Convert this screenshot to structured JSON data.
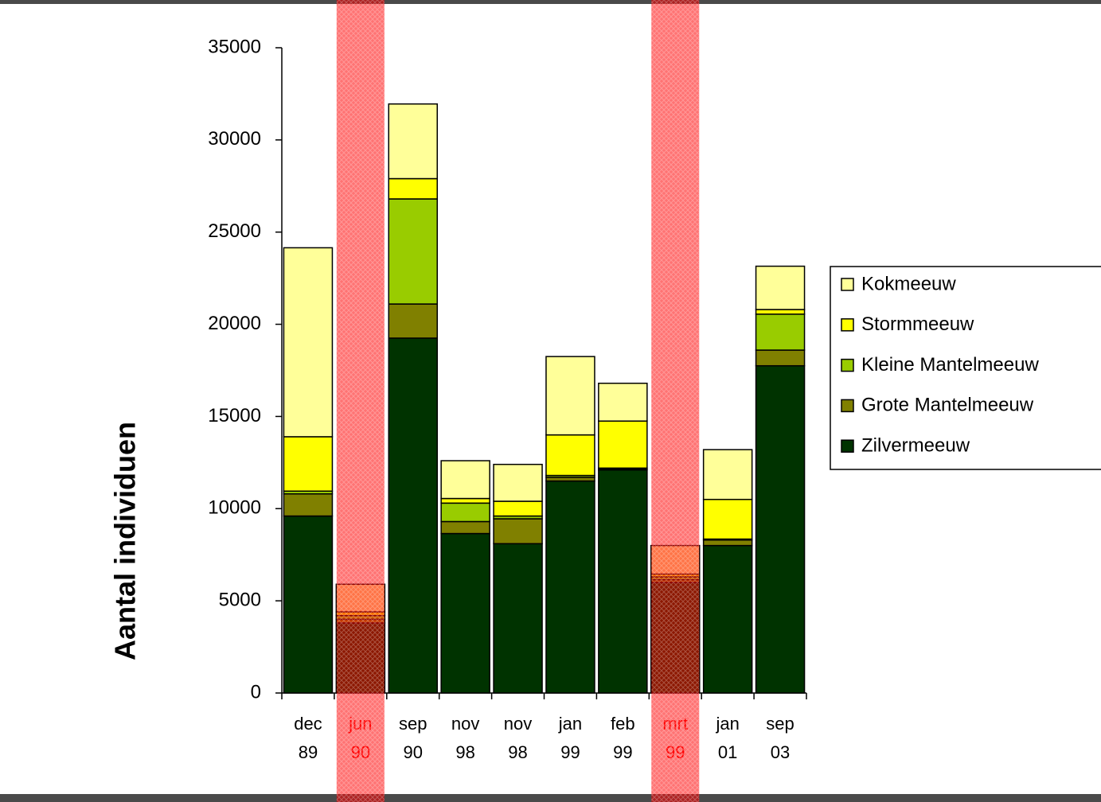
{
  "chart_data": {
    "type": "stacked-bar",
    "y_label": "Aantal individuen",
    "categories": [
      [
        "dec",
        "89"
      ],
      [
        "jun",
        "90"
      ],
      [
        "sep",
        "90"
      ],
      [
        "nov",
        "98"
      ],
      [
        "nov",
        "98"
      ],
      [
        "jan",
        "99"
      ],
      [
        "feb",
        "99"
      ],
      [
        "mrt",
        "99"
      ],
      [
        "jan",
        "01"
      ],
      [
        "sep",
        "03"
      ]
    ],
    "series": [
      {
        "name": "Zilvermeeuw",
        "color": "#003300",
        "values": [
          9600,
          3800,
          19250,
          8650,
          8100,
          11500,
          12100,
          6000,
          8000,
          17750
        ]
      },
      {
        "name": "Grote Mantelmeeuw",
        "color": "#808000",
        "values": [
          1200,
          200,
          1850,
          650,
          1350,
          200,
          50,
          150,
          300,
          850
        ]
      },
      {
        "name": "Kleine Mantelmeeuw",
        "color": "#99cc00",
        "values": [
          150,
          200,
          5700,
          1000,
          150,
          100,
          50,
          150,
          50,
          1950
        ]
      },
      {
        "name": "Stormmeeuw",
        "color": "#ffff00",
        "values": [
          2950,
          200,
          1100,
          250,
          800,
          2200,
          2550,
          150,
          2150,
          250
        ]
      },
      {
        "name": "Kokmeeuw",
        "color": "#ffff99",
        "values": [
          10250,
          1500,
          4050,
          2050,
          2000,
          4250,
          2050,
          1550,
          2700,
          2350
        ]
      }
    ],
    "ylim": [
      0,
      35000
    ],
    "yticks": [
      0,
      5000,
      10000,
      15000,
      20000,
      25000,
      30000,
      35000
    ],
    "highlight": [
      1,
      7
    ],
    "highlight_color": "#ff0000",
    "legend": "right"
  }
}
